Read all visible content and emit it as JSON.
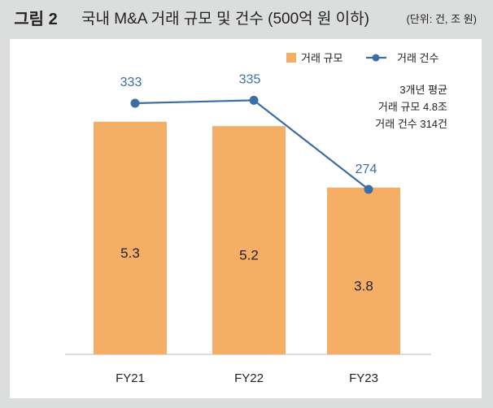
{
  "header": {
    "figure_label": "그림 2",
    "title": "국내 M&A 거래 규모 및 건수 (500억 원 이하)",
    "unit": "(단위: 건, 조 원)"
  },
  "chart_data": {
    "type": "bar+line",
    "categories": [
      "FY21",
      "FY22",
      "FY23"
    ],
    "series": [
      {
        "name": "거래 규모",
        "type": "bar",
        "color": "#f5ae66",
        "values": [
          5.3,
          5.2,
          3.8
        ],
        "labels": [
          "5.3",
          "5.2",
          "3.8"
        ]
      },
      {
        "name": "거래 건수",
        "type": "line",
        "color": "#3a6ea5",
        "values": [
          333,
          335,
          274
        ],
        "labels": [
          "333",
          "335",
          "274"
        ]
      }
    ],
    "annotation": [
      "3개년 평균",
      "거래 규모 4.8조",
      "거래 건수 314건"
    ],
    "legend": "top-right",
    "grid": false
  }
}
